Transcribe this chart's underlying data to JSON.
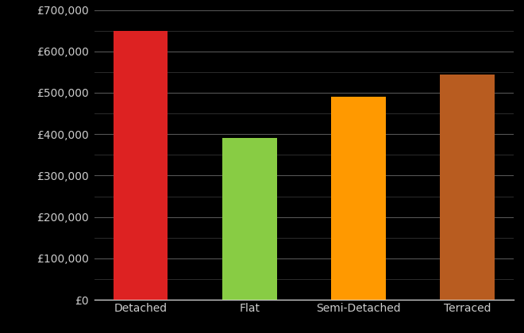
{
  "categories": [
    "Detached",
    "Flat",
    "Semi-Detached",
    "Terraced"
  ],
  "values": [
    650000,
    390000,
    490000,
    545000
  ],
  "bar_colors": [
    "#dd2222",
    "#88cc44",
    "#ff9900",
    "#b85c20"
  ],
  "background_color": "#000000",
  "text_color": "#cccccc",
  "major_grid_color": "#555555",
  "minor_grid_color": "#333333",
  "ylim": [
    0,
    700000
  ],
  "yticks_major": [
    0,
    100000,
    200000,
    300000,
    400000,
    500000,
    600000,
    700000
  ],
  "yticks_minor": [
    50000,
    150000,
    250000,
    350000,
    450000,
    550000,
    650000
  ],
  "bar_width": 0.5
}
